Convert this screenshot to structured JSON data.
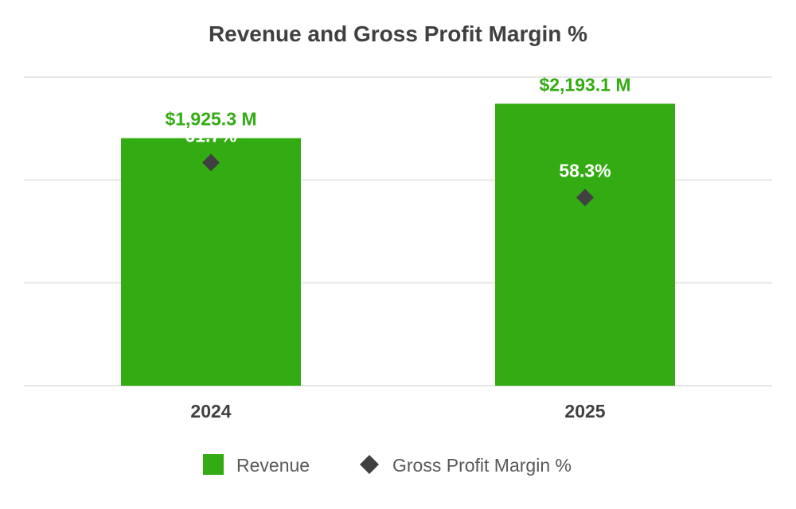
{
  "chart_data": {
    "type": "bar",
    "title": "Revenue and Gross Profit Margin %",
    "categories": [
      "2024",
      "2025"
    ],
    "series": [
      {
        "name": "Revenue",
        "kind": "bar",
        "values": [
          1925.3,
          2193.1
        ],
        "labels": [
          "$1,925.3 M",
          "$2,193.1 M"
        ],
        "color": "#33ab13"
      },
      {
        "name": "Gross Profit Margin %",
        "kind": "marker",
        "marker": "diamond",
        "values": [
          61.7,
          58.3
        ],
        "labels": [
          "61.7%",
          "58.3%"
        ],
        "color": "#404040"
      }
    ],
    "revenue_axis": [
      0,
      2400
    ],
    "margin_axis": [
      40,
      70
    ],
    "gridlines": true,
    "axis_labels_visible": false,
    "legend_position": "bottom"
  },
  "colors": {
    "bar_label": "#33ab13",
    "grid": "#e6e6e6",
    "text": "#404040"
  }
}
